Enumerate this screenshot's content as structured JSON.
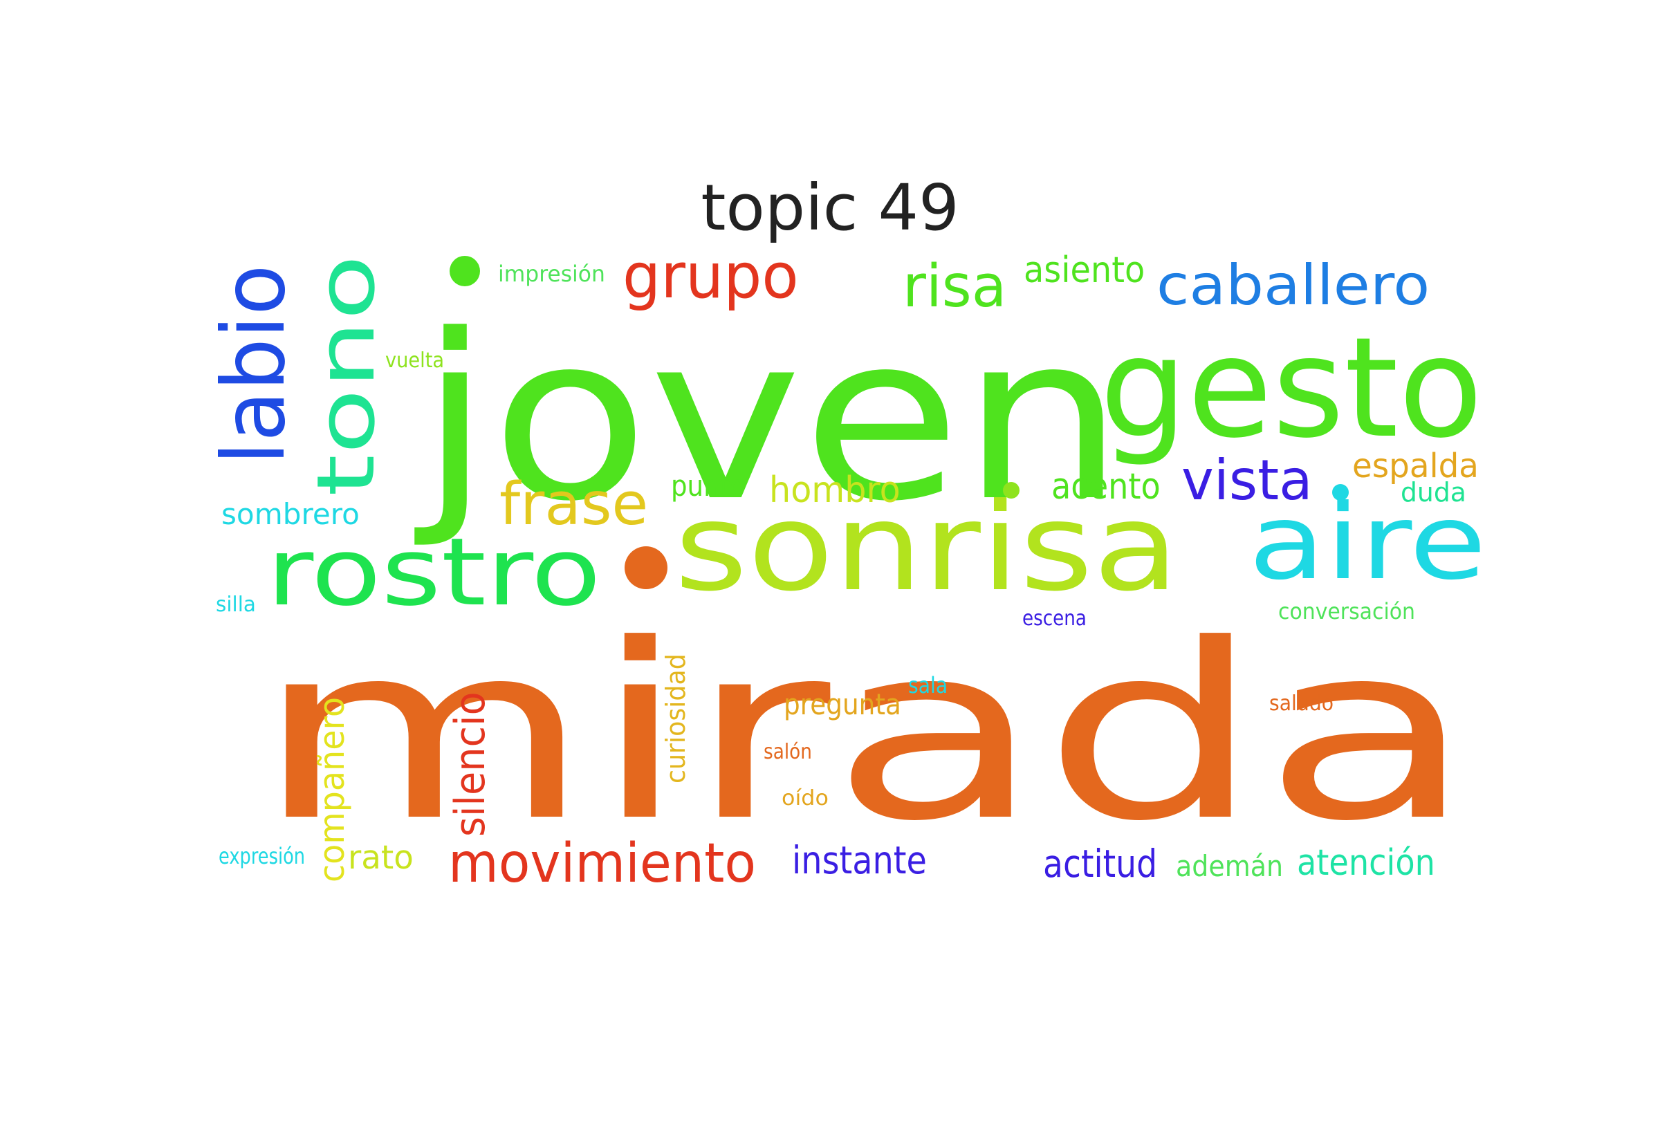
{
  "title": "topic 49",
  "words": [
    {
      "text": "mirada",
      "color": "#e4681e"
    },
    {
      "text": "joven",
      "color": "#4fe31e"
    },
    {
      "text": "gesto",
      "color": "#4fe31e"
    },
    {
      "text": "sonrisa",
      "color": "#b2e31e"
    },
    {
      "text": "aire",
      "color": "#1ed8e3"
    },
    {
      "text": "rostro",
      "color": "#1ee34f"
    },
    {
      "text": "tono",
      "color": "#1ee392"
    },
    {
      "text": "labio",
      "color": "#1e4be3"
    },
    {
      "text": "grupo",
      "color": "#e3351e"
    },
    {
      "text": "risa",
      "color": "#4fe31e"
    },
    {
      "text": "caballero",
      "color": "#1e7ee3"
    },
    {
      "text": "vista",
      "color": "#3a1ee3"
    },
    {
      "text": "frase",
      "color": "#e3c81e"
    },
    {
      "text": "movimiento",
      "color": "#e3351e"
    },
    {
      "text": "silencio",
      "color": "#e3351e"
    },
    {
      "text": "hombro",
      "color": "#c8e31e"
    },
    {
      "text": "acento",
      "color": "#4fe31e"
    },
    {
      "text": "espalda",
      "color": "#e3a51e"
    },
    {
      "text": "asiento",
      "color": "#4fe31e"
    },
    {
      "text": "instante",
      "color": "#3a1ee3"
    },
    {
      "text": "actitud",
      "color": "#3a1ee3"
    },
    {
      "text": "atención",
      "color": "#1ee3a5"
    },
    {
      "text": "compañero",
      "color": "#e3e31e"
    },
    {
      "text": "curiosidad",
      "color": "#e3b61e"
    },
    {
      "text": "sombrero",
      "color": "#1ed8e3"
    },
    {
      "text": "ademán",
      "color": "#4fe35a"
    },
    {
      "text": "pregunta",
      "color": "#e3a51e"
    },
    {
      "text": "rato",
      "color": "#c8e31e"
    },
    {
      "text": "punto",
      "color": "#4fe31e"
    },
    {
      "text": "duda",
      "color": "#1ee392"
    },
    {
      "text": "conversación",
      "color": "#4fe35a"
    },
    {
      "text": "impresión",
      "color": "#4fe35a"
    },
    {
      "text": "vuelta",
      "color": "#8ee31e"
    },
    {
      "text": "escena",
      "color": "#3a1ee3"
    },
    {
      "text": "silla",
      "color": "#1ed8e3"
    },
    {
      "text": "expresión",
      "color": "#1ed8e3"
    },
    {
      "text": "sala",
      "color": "#1ed8e3"
    },
    {
      "text": "saludo",
      "color": "#e3681e"
    },
    {
      "text": "salón",
      "color": "#e3681e"
    },
    {
      "text": "oído",
      "color": "#e3a51e"
    }
  ],
  "dots": [
    {
      "color": "#4fe31e"
    },
    {
      "color": "#e4681e"
    },
    {
      "color": "#8ee31e"
    },
    {
      "color": "#1ed8e3"
    }
  ]
}
